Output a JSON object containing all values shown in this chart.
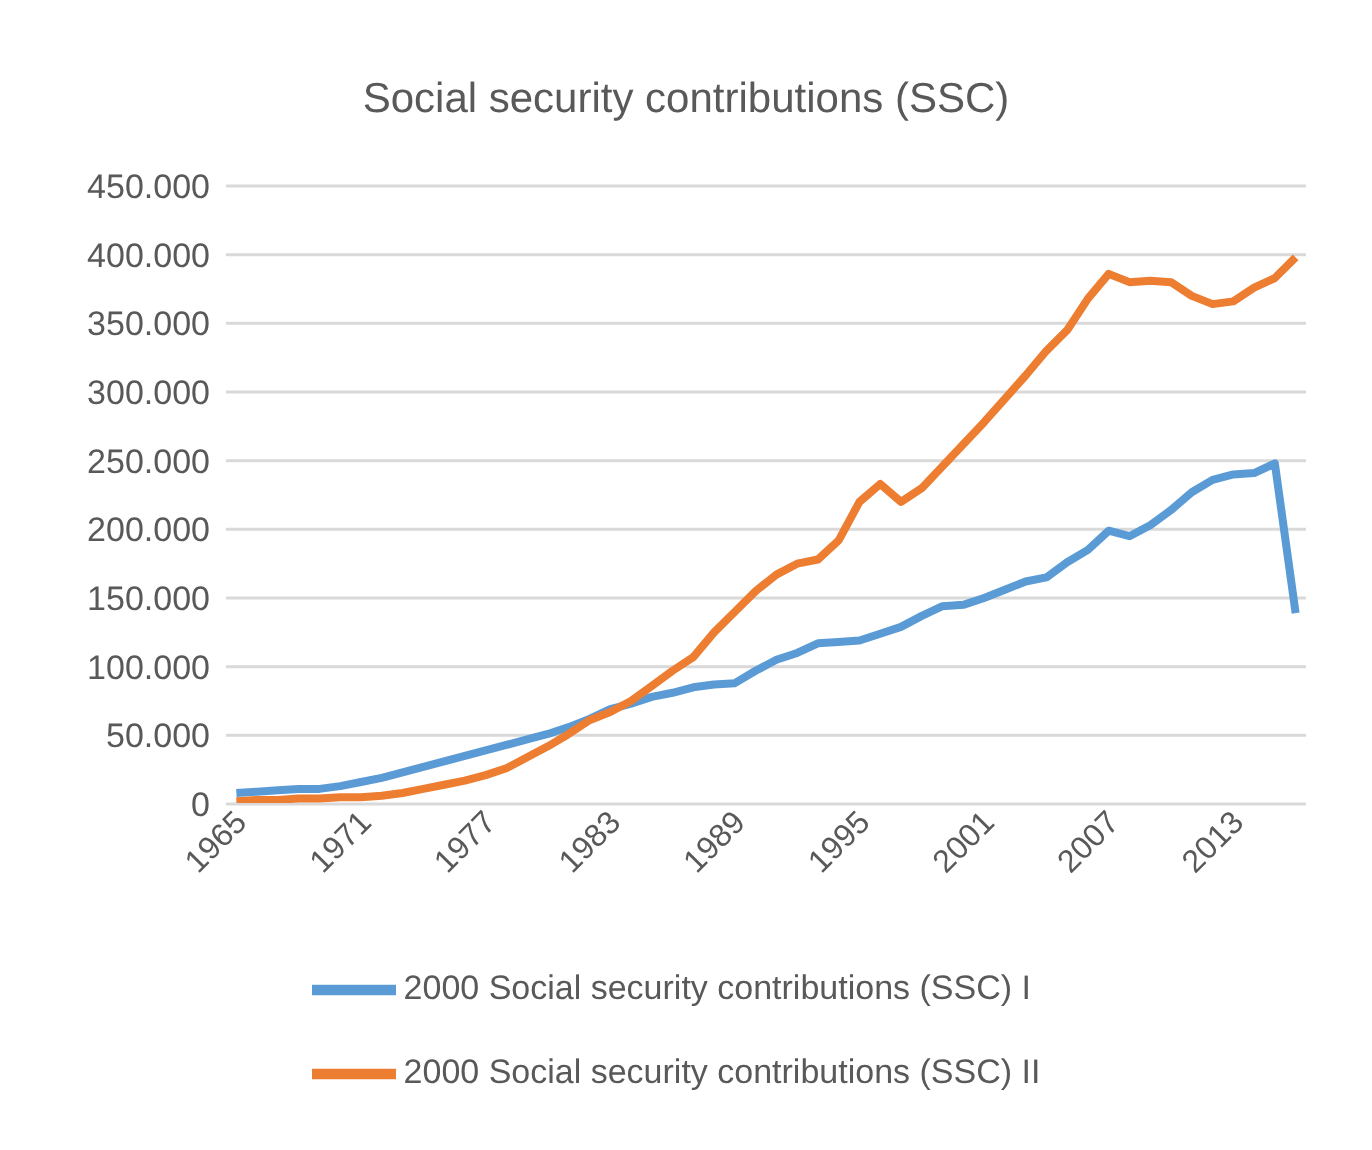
{
  "chart_data": {
    "type": "line",
    "title": "Social security contributions (SSC)",
    "categories": [
      "1965",
      null,
      null,
      null,
      null,
      null,
      "1971",
      null,
      null,
      null,
      null,
      null,
      "1977",
      null,
      null,
      null,
      null,
      null,
      "1983",
      null,
      null,
      null,
      null,
      null,
      "1989",
      null,
      null,
      null,
      null,
      null,
      "1995",
      null,
      null,
      null,
      null,
      null,
      "2001",
      null,
      null,
      null,
      null,
      null,
      "2007",
      null,
      null,
      null,
      null,
      null,
      "2013",
      null,
      null,
      null
    ],
    "series": [
      {
        "name": "2000 Social security contributions (SSC) I",
        "color": "#5b9bd5",
        "values": [
          8000,
          9000,
          10000,
          11000,
          11000,
          13000,
          16000,
          19000,
          23000,
          27000,
          31000,
          35000,
          39000,
          43000,
          47000,
          51000,
          56000,
          62000,
          69000,
          73000,
          78000,
          81000,
          85000,
          87000,
          88000,
          97000,
          105000,
          110000,
          117000,
          118000,
          119000,
          124000,
          129000,
          137000,
          144000,
          145000,
          150000,
          156000,
          162000,
          165000,
          176000,
          185000,
          199000,
          195000,
          203000,
          214000,
          227000,
          236000,
          240000,
          241000,
          248000,
          139000
        ]
      },
      {
        "name": "2000 Social security contributions (SSC) II",
        "color": "#ed7d31",
        "values": [
          2000,
          3000,
          3000,
          4000,
          4000,
          5000,
          5000,
          6000,
          8000,
          11000,
          14000,
          17000,
          21000,
          26000,
          34000,
          42000,
          51000,
          61000,
          67000,
          75000,
          86000,
          97000,
          107000,
          125000,
          140000,
          155000,
          167000,
          175000,
          178000,
          192000,
          220000,
          233000,
          220000,
          230000,
          246000,
          262000,
          278000,
          295000,
          312000,
          330000,
          345000,
          368000,
          386000,
          380000,
          381000,
          380000,
          370000,
          364000,
          366000,
          376000,
          383000,
          398000
        ]
      }
    ],
    "ylim": [
      0,
      450000
    ],
    "yticks": [
      0,
      {
        "value": 50000,
        "label": "50.000"
      },
      {
        "value": 100000,
        "label": "100.000"
      },
      {
        "value": 150000,
        "label": "150.000"
      },
      {
        "value": 200000,
        "label": "200.000"
      },
      {
        "value": 250000,
        "label": "250.000"
      },
      {
        "value": 300000,
        "label": "300.000"
      },
      {
        "value": 350000,
        "label": "350.000"
      },
      {
        "value": 400000,
        "label": "400.000"
      },
      {
        "value": 450000,
        "label": "450.000"
      }
    ],
    "grid": "y",
    "legend": "bottom",
    "marker": "none",
    "line_style": "solid"
  }
}
